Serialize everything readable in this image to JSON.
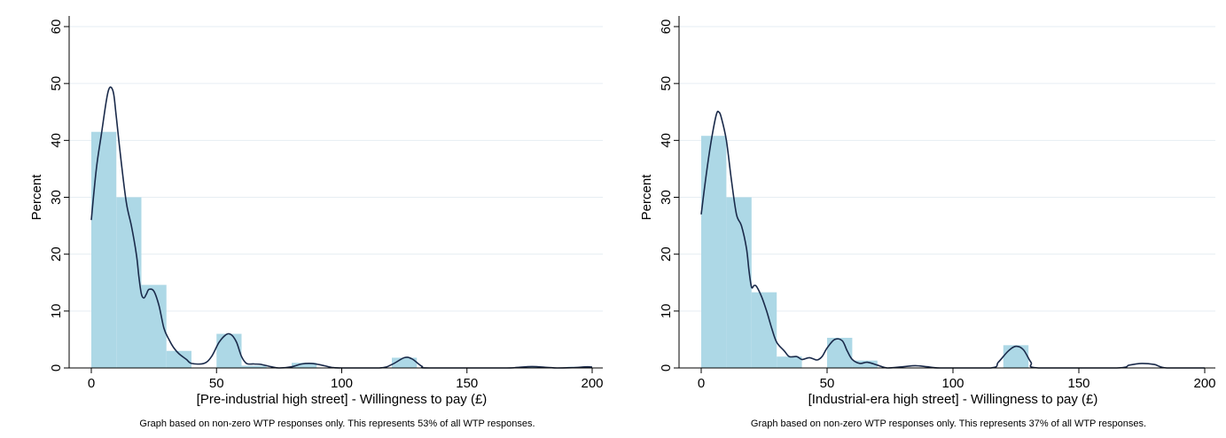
{
  "chart_data": [
    {
      "type": "bar",
      "subtype": "histogram with kernel density curve",
      "xlabel": "[Pre-industrial high street] - Willingness to pay (£)",
      "ylabel": "Percent",
      "note": "Graph based on non-zero WTP responses only. This represents 53% of all WTP responses.",
      "xlim": [
        0,
        200
      ],
      "ylim": [
        0,
        60
      ],
      "x_ticks": [
        0,
        50,
        100,
        150,
        200
      ],
      "y_ticks": [
        0,
        10,
        20,
        30,
        40,
        50,
        60
      ],
      "grid": true,
      "bar_color": "#add8e6",
      "line_color": "#1a2a4a",
      "bins": [
        {
          "x0": 0,
          "x1": 10,
          "value": 41.5
        },
        {
          "x0": 10,
          "x1": 20,
          "value": 30
        },
        {
          "x0": 20,
          "x1": 30,
          "value": 14.6
        },
        {
          "x0": 30,
          "x1": 40,
          "value": 3
        },
        {
          "x0": 40,
          "x1": 50,
          "value": 0
        },
        {
          "x0": 50,
          "x1": 60,
          "value": 6
        },
        {
          "x0": 60,
          "x1": 70,
          "value": 0.4
        },
        {
          "x0": 70,
          "x1": 80,
          "value": 0
        },
        {
          "x0": 80,
          "x1": 90,
          "value": 0.9
        },
        {
          "x0": 90,
          "x1": 100,
          "value": 0
        },
        {
          "x0": 100,
          "x1": 110,
          "value": 0
        },
        {
          "x0": 110,
          "x1": 120,
          "value": 0
        },
        {
          "x0": 120,
          "x1": 130,
          "value": 1.8
        },
        {
          "x0": 130,
          "x1": 140,
          "value": 0
        },
        {
          "x0": 140,
          "x1": 150,
          "value": 0
        },
        {
          "x0": 150,
          "x1": 160,
          "value": 0
        },
        {
          "x0": 160,
          "x1": 170,
          "value": 0
        },
        {
          "x0": 170,
          "x1": 180,
          "value": 0.2
        },
        {
          "x0": 180,
          "x1": 190,
          "value": 0
        },
        {
          "x0": 190,
          "x1": 200,
          "value": 0.2
        }
      ],
      "density": [
        [
          0,
          26
        ],
        [
          2,
          35
        ],
        [
          4,
          41
        ],
        [
          6,
          47
        ],
        [
          7,
          49
        ],
        [
          8,
          49.3
        ],
        [
          9,
          48
        ],
        [
          10,
          44
        ],
        [
          12,
          36
        ],
        [
          14,
          29
        ],
        [
          16,
          25
        ],
        [
          18,
          20
        ],
        [
          19,
          16
        ],
        [
          20,
          13
        ],
        [
          21,
          12.3
        ],
        [
          22,
          13
        ],
        [
          23,
          13.8
        ],
        [
          25,
          13.5
        ],
        [
          27,
          11
        ],
        [
          29,
          7
        ],
        [
          31,
          5
        ],
        [
          33,
          3.5
        ],
        [
          35,
          2.5
        ],
        [
          38,
          1.5
        ],
        [
          40,
          0.8
        ],
        [
          45,
          0.8
        ],
        [
          48,
          2
        ],
        [
          51,
          4.5
        ],
        [
          54,
          5.9
        ],
        [
          56,
          5.8
        ],
        [
          58,
          4.5
        ],
        [
          60,
          2
        ],
        [
          62,
          0.8
        ],
        [
          65,
          0.7
        ],
        [
          68,
          0.6
        ],
        [
          72,
          0.2
        ],
        [
          75,
          0
        ],
        [
          80,
          0.2
        ],
        [
          84,
          0.7
        ],
        [
          88,
          0.8
        ],
        [
          92,
          0.5
        ],
        [
          96,
          0.1
        ],
        [
          100,
          0
        ],
        [
          115,
          0
        ],
        [
          120,
          0.6
        ],
        [
          125,
          1.8
        ],
        [
          128,
          1.6
        ],
        [
          132,
          0.3
        ],
        [
          135,
          0
        ],
        [
          165,
          0
        ],
        [
          170,
          0.1
        ],
        [
          176,
          0.25
        ],
        [
          182,
          0.1
        ],
        [
          186,
          0
        ],
        [
          192,
          0.05
        ],
        [
          198,
          0.2
        ],
        [
          200,
          0.15
        ]
      ]
    },
    {
      "type": "bar",
      "subtype": "histogram with kernel density curve",
      "xlabel": "[Industrial-era high street] - Willingness to pay (£)",
      "ylabel": "Percent",
      "note": "Graph based on non-zero WTP responses only. This represents 37% of all WTP responses.",
      "xlim": [
        0,
        200
      ],
      "ylim": [
        0,
        60
      ],
      "x_ticks": [
        0,
        50,
        100,
        150,
        200
      ],
      "y_ticks": [
        0,
        10,
        20,
        30,
        40,
        50,
        60
      ],
      "grid": true,
      "bar_color": "#add8e6",
      "line_color": "#1a2a4a",
      "bins": [
        {
          "x0": 0,
          "x1": 10,
          "value": 40.8
        },
        {
          "x0": 10,
          "x1": 20,
          "value": 30
        },
        {
          "x0": 20,
          "x1": 30,
          "value": 13.3
        },
        {
          "x0": 30,
          "x1": 40,
          "value": 2
        },
        {
          "x0": 40,
          "x1": 50,
          "value": 0
        },
        {
          "x0": 50,
          "x1": 60,
          "value": 5.3
        },
        {
          "x0": 60,
          "x1": 70,
          "value": 1.3
        },
        {
          "x0": 70,
          "x1": 80,
          "value": 0
        },
        {
          "x0": 80,
          "x1": 90,
          "value": 0
        },
        {
          "x0": 90,
          "x1": 100,
          "value": 0
        },
        {
          "x0": 100,
          "x1": 110,
          "value": 0
        },
        {
          "x0": 110,
          "x1": 120,
          "value": 0
        },
        {
          "x0": 120,
          "x1": 130,
          "value": 4
        },
        {
          "x0": 130,
          "x1": 140,
          "value": 0
        },
        {
          "x0": 140,
          "x1": 150,
          "value": 0
        },
        {
          "x0": 150,
          "x1": 160,
          "value": 0
        },
        {
          "x0": 160,
          "x1": 170,
          "value": 0
        },
        {
          "x0": 170,
          "x1": 180,
          "value": 0
        },
        {
          "x0": 180,
          "x1": 190,
          "value": 0
        },
        {
          "x0": 190,
          "x1": 200,
          "value": 0
        }
      ],
      "density": [
        [
          0,
          27
        ],
        [
          2,
          34
        ],
        [
          4,
          40
        ],
        [
          6,
          44.5
        ],
        [
          7,
          45
        ],
        [
          8,
          44
        ],
        [
          10,
          40
        ],
        [
          12,
          33
        ],
        [
          14,
          27
        ],
        [
          16,
          25
        ],
        [
          18,
          21
        ],
        [
          19,
          17
        ],
        [
          20,
          14.2
        ],
        [
          21,
          14.5
        ],
        [
          22,
          14.3
        ],
        [
          24,
          12.5
        ],
        [
          26,
          10
        ],
        [
          28,
          7
        ],
        [
          30,
          4.5
        ],
        [
          33,
          3
        ],
        [
          35,
          2
        ],
        [
          38,
          2
        ],
        [
          40,
          1.5
        ],
        [
          43,
          1.8
        ],
        [
          46,
          1.4
        ],
        [
          48,
          2
        ],
        [
          50,
          3.5
        ],
        [
          53,
          5
        ],
        [
          56,
          4.8
        ],
        [
          58,
          3
        ],
        [
          60,
          1.5
        ],
        [
          63,
          0.8
        ],
        [
          66,
          1
        ],
        [
          70,
          0.5
        ],
        [
          74,
          0
        ],
        [
          80,
          0.2
        ],
        [
          85,
          0.4
        ],
        [
          90,
          0.2
        ],
        [
          95,
          0
        ],
        [
          115,
          0
        ],
        [
          118,
          1
        ],
        [
          122,
          3
        ],
        [
          125,
          3.8
        ],
        [
          128,
          3.2
        ],
        [
          131,
          1
        ],
        [
          134,
          0
        ],
        [
          165,
          0
        ],
        [
          170,
          0.5
        ],
        [
          175,
          0.8
        ],
        [
          180,
          0.6
        ],
        [
          185,
          0
        ],
        [
          200,
          0
        ]
      ]
    }
  ]
}
